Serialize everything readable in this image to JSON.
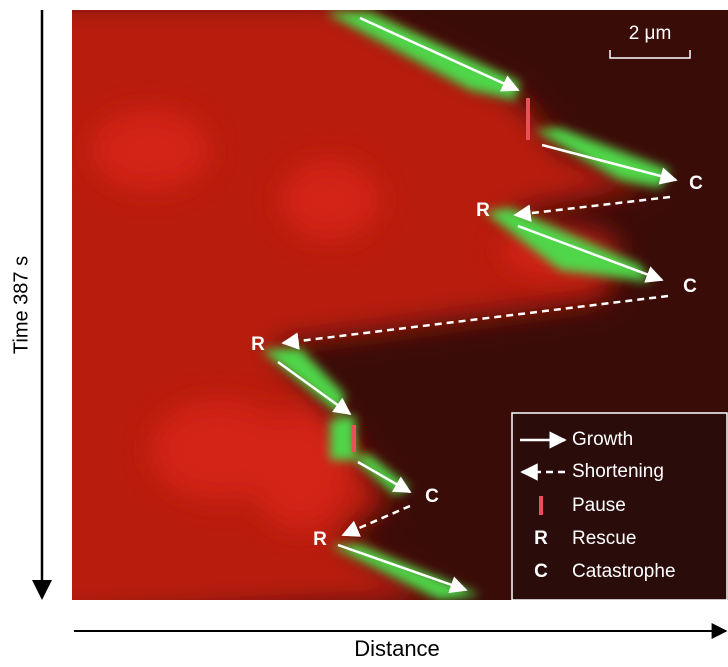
{
  "scale_bar": "2 μm",
  "y_axis": "Time 387 s",
  "x_axis": "Distance",
  "markers": [
    "C",
    "R",
    "C",
    "R",
    "C",
    "R"
  ],
  "legend": [
    {
      "label": "Growth"
    },
    {
      "label": "Shortening"
    },
    {
      "label": "Pause"
    },
    {
      "symbol": "R",
      "label": "Rescue"
    },
    {
      "symbol": "C",
      "label": "Catastrophe"
    }
  ]
}
